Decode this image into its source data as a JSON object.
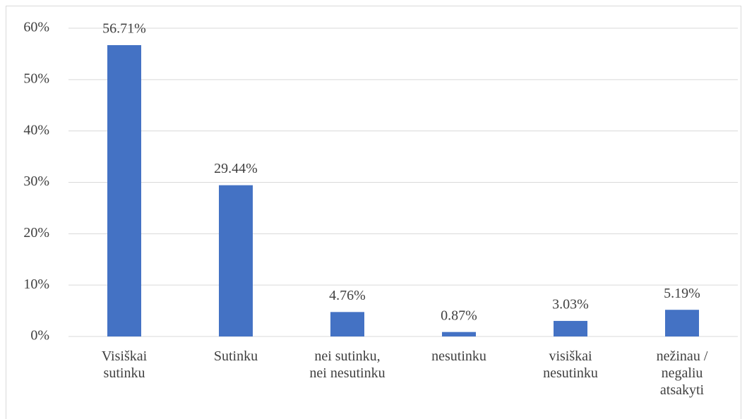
{
  "chart_data": {
    "type": "bar",
    "categories": [
      "Visiškai\nsutinku",
      "Sutinku",
      "nei sutinku,\nnei nesutinku",
      "nesutinku",
      "visiškai\nnesutinku",
      "nežinau /\nnegaliu\natsakyti"
    ],
    "values": [
      56.71,
      29.44,
      4.76,
      0.87,
      3.03,
      5.19
    ],
    "value_labels": [
      "56.71%",
      "29.44%",
      "4.76%",
      "0.87%",
      "3.03%",
      "5.19%"
    ],
    "color": "#4472c4",
    "ylim": [
      0,
      60
    ],
    "yticks": [
      {
        "value": 0,
        "label": "0%"
      },
      {
        "value": 10,
        "label": "10%"
      },
      {
        "value": 20,
        "label": "20%"
      },
      {
        "value": 30,
        "label": "30%"
      },
      {
        "value": 40,
        "label": "40%"
      },
      {
        "value": 50,
        "label": "50%"
      },
      {
        "value": 60,
        "label": "60%"
      }
    ],
    "grid": true
  }
}
